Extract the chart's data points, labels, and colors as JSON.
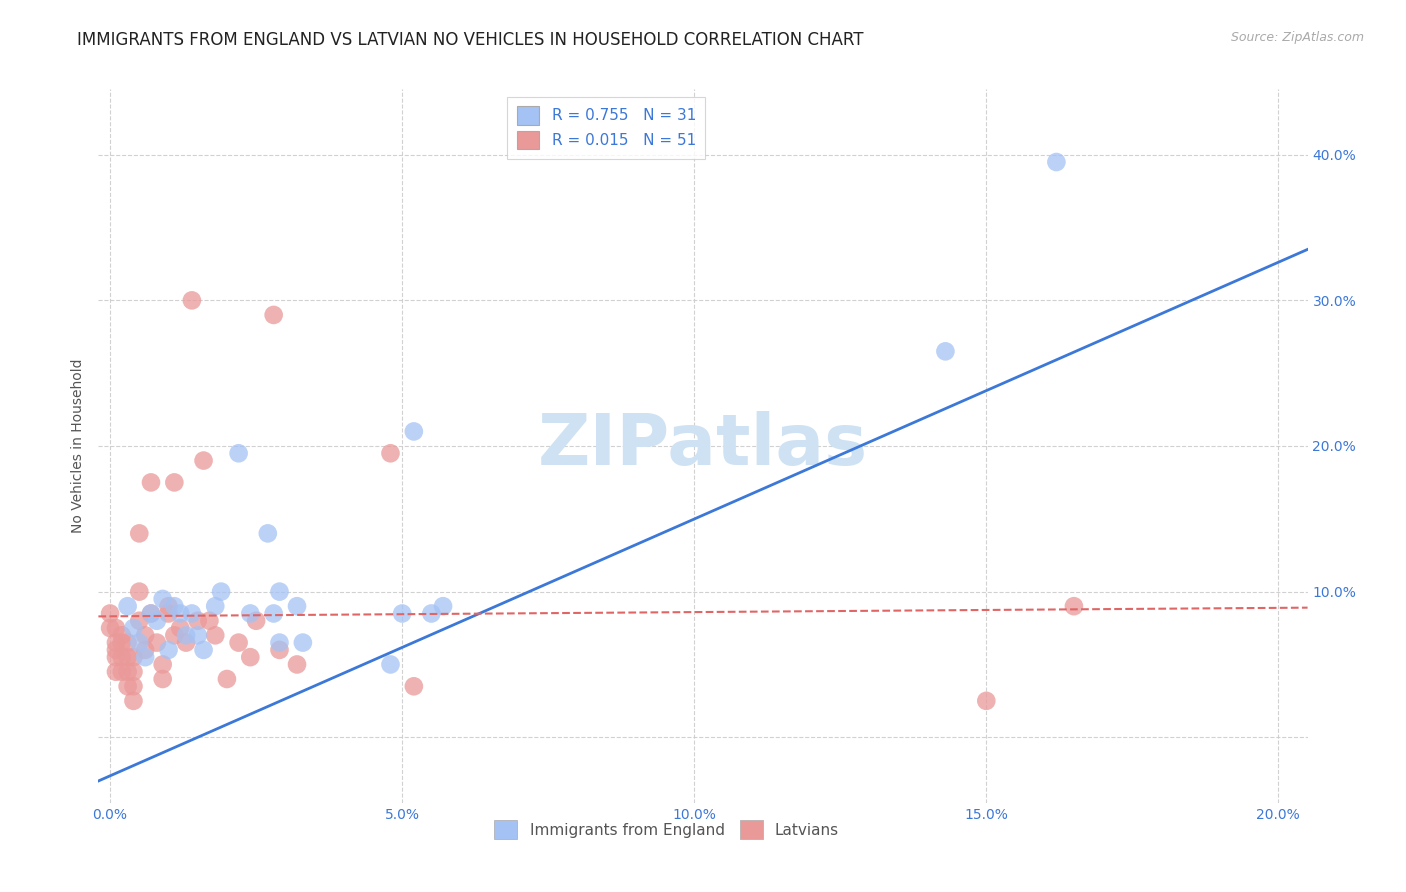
{
  "title": "IMMIGRANTS FROM ENGLAND VS LATVIAN NO VEHICLES IN HOUSEHOLD CORRELATION CHART",
  "source": "Source: ZipAtlas.com",
  "ylabel": "No Vehicles in Household",
  "xlim": [
    -0.002,
    0.205
  ],
  "ylim": [
    -0.045,
    0.445
  ],
  "xticks": [
    0.0,
    0.05,
    0.1,
    0.15,
    0.2
  ],
  "xtick_labels": [
    "0.0%",
    "5.0%",
    "10.0%",
    "15.0%",
    "20.0%"
  ],
  "yticks": [
    0.0,
    0.1,
    0.2,
    0.3,
    0.4
  ],
  "ytick_labels": [
    "",
    "10.0%",
    "20.0%",
    "30.0%",
    "40.0%"
  ],
  "legend_entries": [
    {
      "label": "R = 0.755   N = 31",
      "color": "#a4c2f4"
    },
    {
      "label": "R = 0.015   N = 51",
      "color": "#ea9999"
    }
  ],
  "legend_label1": "Immigrants from England",
  "legend_label2": "Latvians",
  "blue_color": "#a4c2f4",
  "pink_color": "#ea9999",
  "line_blue": "#3c78d8",
  "line_pink": "#e06666",
  "watermark": "ZIPatlas",
  "watermark_color": "#cfe2f3",
  "blue_scatter_x": [
    0.003,
    0.004,
    0.005,
    0.006,
    0.007,
    0.008,
    0.009,
    0.01,
    0.011,
    0.012,
    0.013,
    0.014,
    0.015,
    0.016,
    0.018,
    0.019,
    0.022,
    0.024,
    0.027,
    0.028,
    0.029,
    0.029,
    0.032,
    0.033,
    0.048,
    0.05,
    0.052,
    0.055,
    0.057,
    0.143,
    0.162
  ],
  "blue_scatter_y": [
    0.09,
    0.075,
    0.065,
    0.055,
    0.085,
    0.08,
    0.095,
    0.06,
    0.09,
    0.085,
    0.07,
    0.085,
    0.07,
    0.06,
    0.09,
    0.1,
    0.195,
    0.085,
    0.14,
    0.085,
    0.1,
    0.065,
    0.09,
    0.065,
    0.05,
    0.085,
    0.21,
    0.085,
    0.09,
    0.265,
    0.395
  ],
  "pink_scatter_x": [
    0.0,
    0.0,
    0.001,
    0.001,
    0.001,
    0.001,
    0.001,
    0.002,
    0.002,
    0.002,
    0.002,
    0.003,
    0.003,
    0.003,
    0.003,
    0.004,
    0.004,
    0.004,
    0.004,
    0.005,
    0.005,
    0.005,
    0.006,
    0.006,
    0.007,
    0.007,
    0.008,
    0.009,
    0.009,
    0.01,
    0.01,
    0.011,
    0.011,
    0.012,
    0.013,
    0.014,
    0.015,
    0.016,
    0.017,
    0.018,
    0.02,
    0.022,
    0.024,
    0.025,
    0.028,
    0.029,
    0.032,
    0.048,
    0.052,
    0.15,
    0.165
  ],
  "pink_scatter_y": [
    0.085,
    0.075,
    0.065,
    0.075,
    0.06,
    0.055,
    0.045,
    0.07,
    0.065,
    0.055,
    0.045,
    0.065,
    0.055,
    0.045,
    0.035,
    0.055,
    0.045,
    0.035,
    0.025,
    0.14,
    0.1,
    0.08,
    0.07,
    0.06,
    0.175,
    0.085,
    0.065,
    0.05,
    0.04,
    0.09,
    0.085,
    0.175,
    0.07,
    0.075,
    0.065,
    0.3,
    0.08,
    0.19,
    0.08,
    0.07,
    0.04,
    0.065,
    0.055,
    0.08,
    0.29,
    0.06,
    0.05,
    0.195,
    0.035,
    0.025,
    0.09
  ],
  "blue_line_x0": -0.002,
  "blue_line_x1": 0.205,
  "blue_line_y0": -0.03,
  "blue_line_y1": 0.335,
  "pink_line_x0": -0.002,
  "pink_line_x1": 0.205,
  "pink_line_y0": 0.083,
  "pink_line_y1": 0.089,
  "title_fontsize": 12,
  "source_fontsize": 9,
  "axis_tick_fontsize": 10,
  "ylabel_fontsize": 10,
  "background_color": "#ffffff",
  "grid_color": "#cccccc"
}
